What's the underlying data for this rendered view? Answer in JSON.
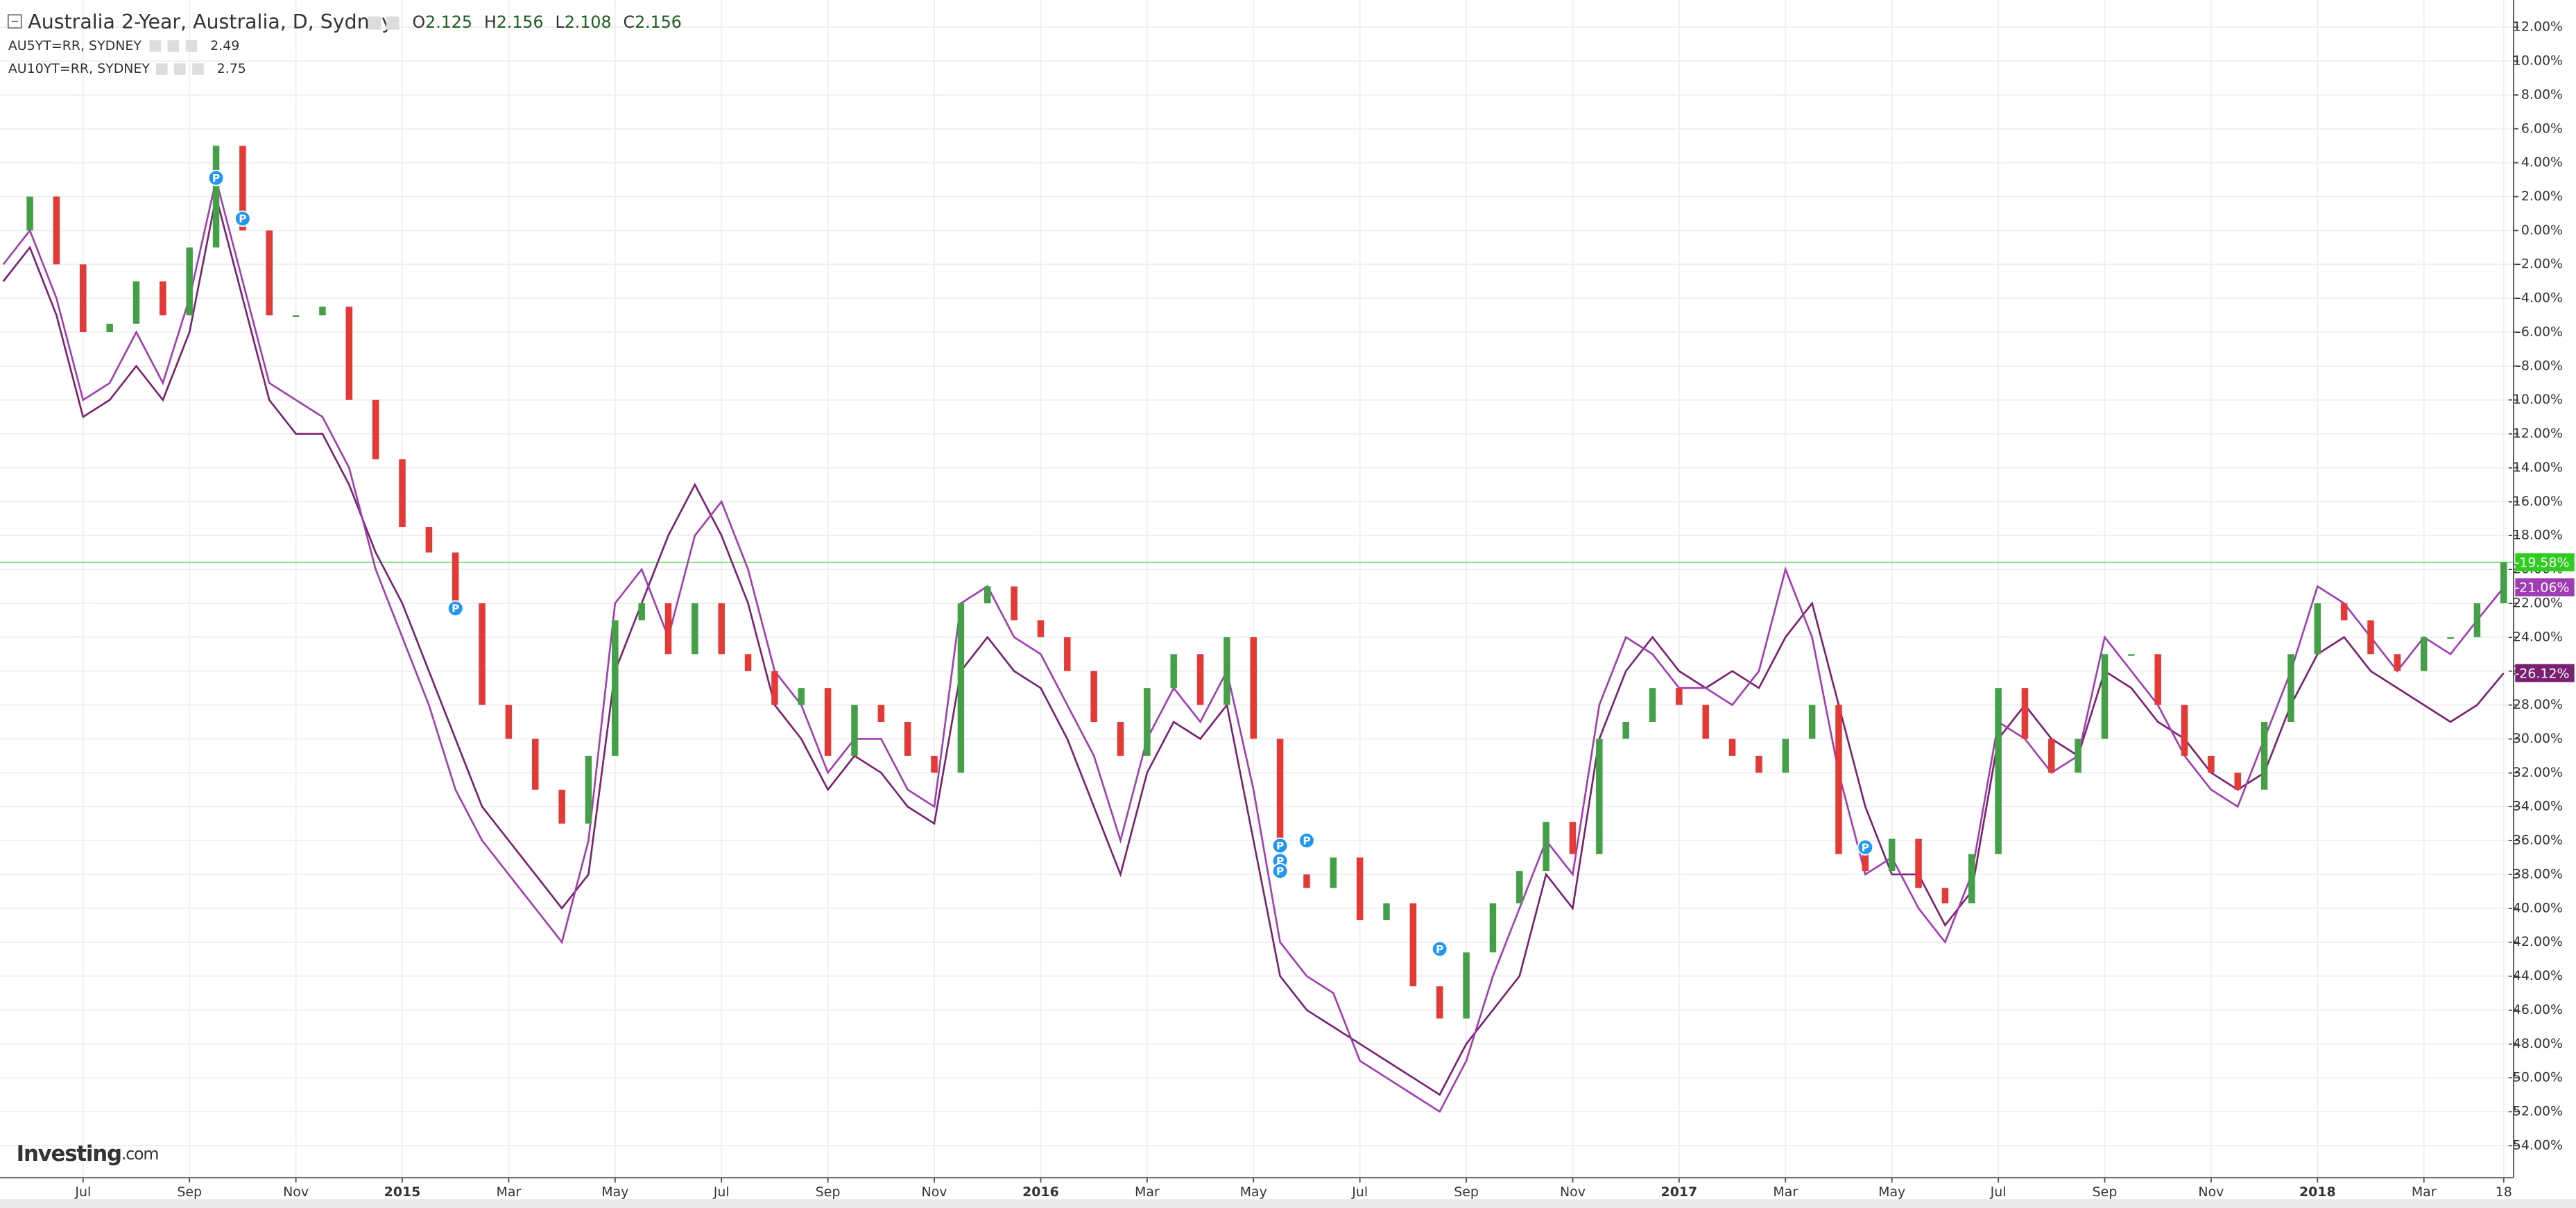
{
  "chart_data": {
    "type": "candlestick",
    "title": "Australia 2-Year, Australia, D, Sydney",
    "ohlc": [
      {
        "label": "O",
        "value": 2.125
      },
      {
        "label": "H",
        "value": 2.156
      },
      {
        "label": "L",
        "value": 2.108
      },
      {
        "label": "C",
        "value": 2.156
      }
    ],
    "watermark": {
      "brand": "Investing",
      "suffix": ".com"
    },
    "categories": [
      null,
      null,
      null,
      "Jul",
      null,
      null,
      null,
      "Sep",
      null,
      null,
      null,
      "Nov",
      null,
      null,
      null,
      "2015",
      null,
      null,
      null,
      "Mar",
      null,
      null,
      null,
      "May",
      null,
      null,
      null,
      "Jul",
      null,
      null,
      null,
      "Sep",
      null,
      null,
      null,
      "Nov",
      null,
      null,
      null,
      "2016",
      null,
      null,
      null,
      "Mar",
      null,
      null,
      null,
      "May",
      null,
      null,
      null,
      "Jul",
      null,
      null,
      null,
      "Sep",
      null,
      null,
      null,
      "Nov",
      null,
      null,
      null,
      "2017",
      null,
      null,
      null,
      "Mar",
      null,
      null,
      null,
      "May",
      null,
      null,
      null,
      "Jul",
      null,
      null,
      null,
      "Sep",
      null,
      null,
      null,
      "Nov",
      null,
      null,
      null,
      "2018",
      null,
      null,
      null,
      "Mar",
      null,
      null,
      "18"
    ],
    "series": [
      {
        "name": "Australia 2-Year",
        "kind": "candles",
        "up_color": "#43a047",
        "down_color": "#e53935",
        "color": "#2ecc1f",
        "last_label": "-19.58%",
        "values": [
          0,
          2,
          -2,
          -6,
          -5.5,
          -3,
          -5,
          -1,
          5,
          0,
          -5,
          -5,
          -4.5,
          -10,
          -13.5,
          -17.5,
          -19,
          -22,
          -28,
          -30,
          -33,
          -35,
          -31,
          -23,
          -22,
          -25,
          -22,
          -25,
          -26,
          -28,
          -27,
          -31,
          -28,
          -29,
          -31,
          -32,
          -22,
          -21,
          -23,
          -24,
          -26,
          -29,
          -31,
          -27,
          -25,
          -28,
          -24,
          -30,
          -38,
          -38.8,
          -37,
          -40.7,
          -39.7,
          -44.6,
          -46.5,
          -42.6,
          -39.7,
          -37.8,
          -34.9,
          -36.8,
          -30,
          -29,
          -27,
          -28,
          -30,
          -31,
          -32,
          -30,
          -28,
          -36.8,
          -37.8,
          -35.9,
          -38.8,
          -39.7,
          -36.8,
          -27,
          -30,
          -32,
          -30,
          -25,
          -25,
          -28,
          -31,
          -32,
          -33,
          -29,
          -25,
          -22,
          -23,
          -25,
          -26,
          -24,
          -24,
          -22,
          -19.58
        ]
      },
      {
        "name": "AU5YT=RR, SYDNEY",
        "current": 2.49,
        "kind": "line",
        "color": "#a23cb4",
        "last_label": "-21.06%",
        "values": [
          -2,
          0,
          -4,
          -10,
          -9,
          -6,
          -9,
          -4,
          3,
          -3,
          -9,
          -10,
          -11,
          -14,
          -20,
          -24,
          -28,
          -33,
          -36,
          -38,
          -40,
          -42,
          -36,
          -22,
          -20,
          -24,
          -18,
          -16,
          -20,
          -26,
          -28,
          -32,
          -30,
          -30,
          -33,
          -34,
          -22,
          -21,
          -24,
          -25,
          -28,
          -31,
          -36,
          -30,
          -27,
          -29,
          -26,
          -33,
          -42,
          -44,
          -45,
          -49,
          -50,
          -51,
          -52,
          -49,
          -44,
          -40,
          -36,
          -38,
          -28,
          -24,
          -25,
          -27,
          -27,
          -28,
          -26,
          -20,
          -24,
          -32,
          -38,
          -37,
          -40,
          -42,
          -38,
          -29,
          -30,
          -32,
          -31,
          -24,
          -26,
          -28,
          -31,
          -33,
          -34,
          -30,
          -26,
          -21,
          -22,
          -24,
          -26,
          -24,
          -25,
          -23,
          -21.06
        ]
      },
      {
        "name": "AU10YT=RR, SYDNEY",
        "current": 2.75,
        "kind": "line",
        "color": "#7a1f72",
        "last_label": "-26.12%",
        "values": [
          -3,
          -1,
          -5,
          -11,
          -10,
          -8,
          -10,
          -6,
          2,
          -4,
          -10,
          -12,
          -12,
          -15,
          -19,
          -22,
          -26,
          -30,
          -34,
          -36,
          -38,
          -40,
          -38,
          -26,
          -22,
          -18,
          -15,
          -18,
          -22,
          -28,
          -30,
          -33,
          -31,
          -32,
          -34,
          -35,
          -26,
          -24,
          -26,
          -27,
          -30,
          -34,
          -38,
          -32,
          -29,
          -30,
          -28,
          -36,
          -44,
          -46,
          -47,
          -48,
          -49,
          -50,
          -51,
          -48,
          -46,
          -44,
          -38,
          -40,
          -30,
          -26,
          -24,
          -26,
          -27,
          -26,
          -27,
          -24,
          -22,
          -28,
          -34,
          -38,
          -38,
          -41,
          -39,
          -30,
          -28,
          -30,
          -31,
          -26,
          -27,
          -29,
          -30,
          -32,
          -33,
          -32,
          -28,
          -25,
          -24,
          -26,
          -27,
          -28,
          -29,
          -28,
          -26.12
        ]
      }
    ],
    "events": [
      {
        "label": "P",
        "category": 8,
        "value": 3.1
      },
      {
        "label": "P",
        "category": 9,
        "value": 0.7
      },
      {
        "label": "P",
        "category": 17,
        "value": -22.3
      },
      {
        "label": "P",
        "category": 48,
        "value": -36.3
      },
      {
        "label": "P",
        "category": 49,
        "value": -36
      },
      {
        "label": "P",
        "category": 48,
        "value": -37.2
      },
      {
        "label": "P",
        "category": 48,
        "value": -37.8
      },
      {
        "label": "P",
        "category": 54,
        "value": -42.4
      },
      {
        "label": "P",
        "category": 70,
        "value": -36.4
      }
    ],
    "ylim": [
      -55.9,
      13.6
    ],
    "yticks": [
      {
        "value": 12,
        "label": "12.00%"
      },
      {
        "value": 10,
        "label": "10.00%"
      },
      {
        "value": 8,
        "label": "8.00%"
      },
      {
        "value": 6,
        "label": "6.00%"
      },
      {
        "value": 4,
        "label": "4.00%"
      },
      {
        "value": 2,
        "label": "2.00%"
      },
      {
        "value": 0,
        "label": "0.00%"
      },
      {
        "value": -2,
        "label": "-2.00%"
      },
      {
        "value": -4,
        "label": "-4.00%"
      },
      {
        "value": -6,
        "label": "-6.00%"
      },
      {
        "value": -8,
        "label": "-8.00%"
      },
      {
        "value": -10,
        "label": "-10.00%"
      },
      {
        "value": -12,
        "label": "-12.00%"
      },
      {
        "value": -14,
        "label": "-14.00%"
      },
      {
        "value": -16,
        "label": "-16.00%"
      },
      {
        "value": -18,
        "label": "-18.00%"
      },
      {
        "value": -20,
        "label": "-20.00%"
      },
      {
        "value": -22,
        "label": "-22.00%"
      },
      {
        "value": -24,
        "label": "-24.00%"
      },
      {
        "value": -26,
        "label": "-26.00%"
      },
      {
        "value": -28,
        "label": "-28.00%"
      },
      {
        "value": -30,
        "label": "-30.00%"
      },
      {
        "value": -32,
        "label": "-32.00%"
      },
      {
        "value": -34,
        "label": "-34.00%"
      },
      {
        "value": -36,
        "label": "-36.00%"
      },
      {
        "value": -38,
        "label": "-38.00%"
      },
      {
        "value": -40,
        "label": "-40.00%"
      },
      {
        "value": -42,
        "label": "-42.00%"
      },
      {
        "value": -44,
        "label": "-44.00%"
      },
      {
        "value": -46,
        "label": "-46.00%"
      },
      {
        "value": -48,
        "label": "-48.00%"
      },
      {
        "value": -50,
        "label": "-50.00%"
      },
      {
        "value": -52,
        "label": "-52.00%"
      },
      {
        "value": -54,
        "label": "-54.00%"
      }
    ],
    "grid": true
  }
}
